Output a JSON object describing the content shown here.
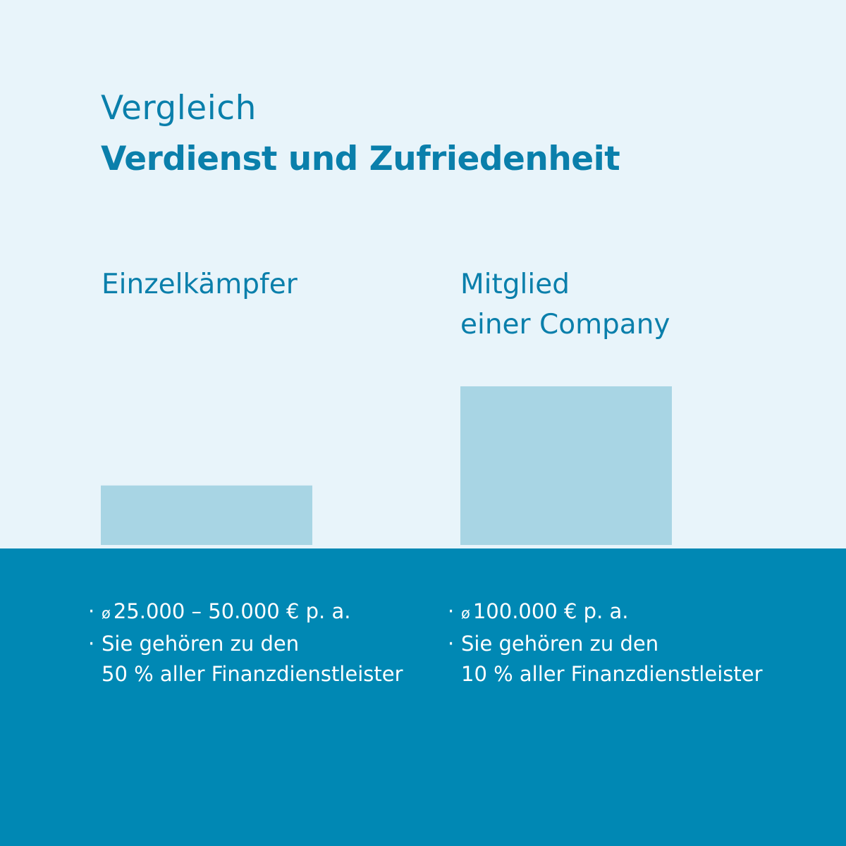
{
  "colors": {
    "background_top": "#e8f4fa",
    "background_bottom": "#0088b4",
    "bar": "#a8d5e4",
    "text_primary": "#0a7fab",
    "text_inverse": "#ffffff"
  },
  "header": {
    "title": "Vergleich",
    "subtitle": "Verdienst und Zufriedenheit"
  },
  "columns": [
    {
      "label_lines": [
        "Einzelkämpfer"
      ],
      "facts": [
        {
          "prefix": "ø",
          "lines": [
            "25.000 – 50.000 € p. a."
          ]
        },
        {
          "prefix": "",
          "lines": [
            "Sie gehören zu den",
            "50 % aller Finanzdienstleister"
          ]
        }
      ]
    },
    {
      "label_lines": [
        "Mitglied",
        "einer Company"
      ],
      "facts": [
        {
          "prefix": "ø",
          "lines": [
            "100.000 € p. a."
          ]
        },
        {
          "prefix": "",
          "lines": [
            "Sie gehören zu den",
            "10 % aller Finanzdienstleister"
          ]
        }
      ]
    }
  ],
  "bullet": "·",
  "chart_data": {
    "type": "bar",
    "title": "Vergleich",
    "subtitle": "Verdienst und Zufriedenheit",
    "categories": [
      "Einzelkämpfer",
      "Mitglied einer Company"
    ],
    "values": [
      37500,
      100000
    ],
    "ylim": [
      0,
      100000
    ],
    "grid": false,
    "xlabel": "",
    "ylabel": ""
  }
}
